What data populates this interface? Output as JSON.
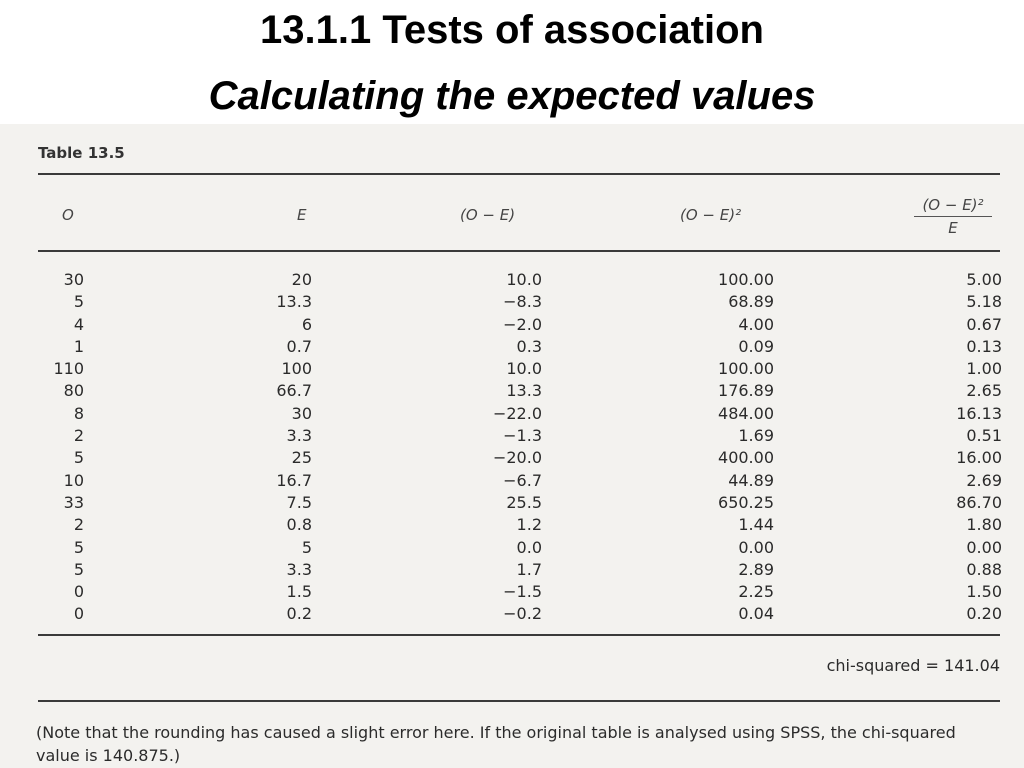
{
  "slide": {
    "title": "13.1.1 Tests of association",
    "subtitle": "Calculating the expected values"
  },
  "table": {
    "label": "Table 13.5",
    "headers": {
      "o": "O",
      "e": "E",
      "diff": "(O − E)",
      "diff_sq": "(O − E)²",
      "chi_numerator": "(O − E)²",
      "chi_denominator": "E"
    },
    "rows": [
      {
        "o": "30",
        "e": "20",
        "diff": "10.0",
        "diff_sq": "100.00",
        "chi": "5.00"
      },
      {
        "o": "5",
        "e": "13.3",
        "diff": "−8.3",
        "diff_sq": "68.89",
        "chi": "5.18"
      },
      {
        "o": "4",
        "e": "6",
        "diff": "−2.0",
        "diff_sq": "4.00",
        "chi": "0.67"
      },
      {
        "o": "1",
        "e": "0.7",
        "diff": "0.3",
        "diff_sq": "0.09",
        "chi": "0.13"
      },
      {
        "o": "110",
        "e": "100",
        "diff": "10.0",
        "diff_sq": "100.00",
        "chi": "1.00"
      },
      {
        "o": "80",
        "e": "66.7",
        "diff": "13.3",
        "diff_sq": "176.89",
        "chi": "2.65"
      },
      {
        "o": "8",
        "e": "30",
        "diff": "−22.0",
        "diff_sq": "484.00",
        "chi": "16.13"
      },
      {
        "o": "2",
        "e": "3.3",
        "diff": "−1.3",
        "diff_sq": "1.69",
        "chi": "0.51"
      },
      {
        "o": "5",
        "e": "25",
        "diff": "−20.0",
        "diff_sq": "400.00",
        "chi": "16.00"
      },
      {
        "o": "10",
        "e": "16.7",
        "diff": "−6.7",
        "diff_sq": "44.89",
        "chi": "2.69"
      },
      {
        "o": "33",
        "e": "7.5",
        "diff": "25.5",
        "diff_sq": "650.25",
        "chi": "86.70"
      },
      {
        "o": "2",
        "e": "0.8",
        "diff": "1.2",
        "diff_sq": "1.44",
        "chi": "1.80"
      },
      {
        "o": "5",
        "e": "5",
        "diff": "0.0",
        "diff_sq": "0.00",
        "chi": "0.00"
      },
      {
        "o": "5",
        "e": "3.3",
        "diff": "1.7",
        "diff_sq": "2.89",
        "chi": "0.88"
      },
      {
        "o": "0",
        "e": "1.5",
        "diff": "−1.5",
        "diff_sq": "2.25",
        "chi": "1.50"
      },
      {
        "o": "0",
        "e": "0.2",
        "diff": "−0.2",
        "diff_sq": "0.04",
        "chi": "0.20"
      }
    ],
    "chi_squared": "chi-squared = 141.04",
    "note": "(Note that the rounding has caused a slight error here. If the original table is analysed using SPSS, the chi-squared value is 140.875.)"
  }
}
